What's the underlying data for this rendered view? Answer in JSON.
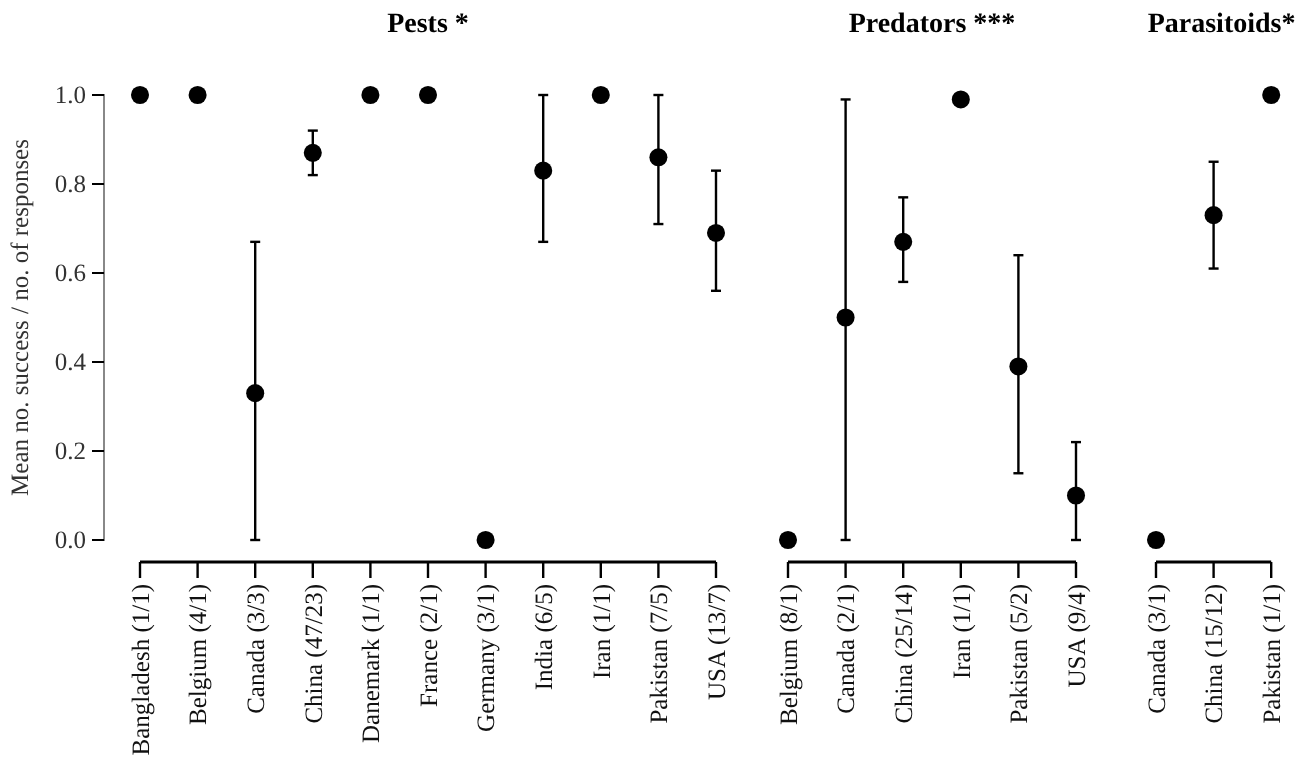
{
  "chart_data": [
    {
      "type": "scatter",
      "title": "Pests *",
      "ylabel": "Mean no. success / no. of responses",
      "categories": [
        "Bangladesh (1/1)",
        "Belgium (4/1)",
        "Canada (3/3)",
        "China (47/23)",
        "Danemark (1/1)",
        "France (2/1)",
        "Germany (3/1)",
        "India (6/5)",
        "Iran (1/1)",
        "Pakistan (7/5)",
        "USA (13/7)"
      ],
      "values": [
        1.0,
        1.0,
        0.33,
        0.87,
        1.0,
        1.0,
        0.0,
        0.83,
        1.0,
        0.86,
        0.69
      ],
      "errors": [
        null,
        null,
        [
          0,
          0.67
        ],
        [
          0.82,
          0.92
        ],
        null,
        null,
        null,
        [
          0.67,
          1.0
        ],
        null,
        [
          0.71,
          1.0
        ],
        [
          0.56,
          0.83
        ]
      ],
      "color": "#000000",
      "marker": "circle",
      "ylim": [
        0,
        1
      ],
      "yticks": [
        {
          "value": 0,
          "label": "0.0"
        },
        {
          "value": 0.2,
          "label": "0.2"
        },
        {
          "value": 0.4,
          "label": "0.4"
        },
        {
          "value": 0.6,
          "label": "0.6"
        },
        {
          "value": 0.8,
          "label": "0.8"
        },
        {
          "value": 1,
          "label": "1.0"
        }
      ],
      "grid": false,
      "legend": false
    },
    {
      "type": "scatter",
      "title": "Predators ***",
      "categories": [
        "Belgium (8/1)",
        "Canada (2/1)",
        "China (25/14)",
        "Iran (1/1)",
        "Pakistan (5/2)",
        "USA (9/4)"
      ],
      "values": [
        0.0,
        0.5,
        0.67,
        0.99,
        0.39,
        0.1
      ],
      "errors": [
        null,
        [
          0,
          0.99
        ],
        [
          0.58,
          0.77
        ],
        null,
        [
          0.15,
          0.64
        ],
        [
          0,
          0.22
        ]
      ],
      "color": "#000000",
      "marker": "circle",
      "ylim": [
        0,
        1
      ],
      "tick_labels": "x",
      "grid": false,
      "legend": false
    },
    {
      "type": "scatter",
      "title": "Parasitoids*",
      "categories": [
        "Canada (3/1)",
        "China (15/12)",
        "Pakistan (1/1)"
      ],
      "values": [
        0.0,
        0.73,
        1.0
      ],
      "errors": [
        null,
        [
          0.61,
          0.85
        ],
        null
      ],
      "color": "#000000",
      "marker": "circle",
      "ylim": [
        0,
        1
      ],
      "tick_labels": "x",
      "grid": false,
      "legend": false
    }
  ]
}
